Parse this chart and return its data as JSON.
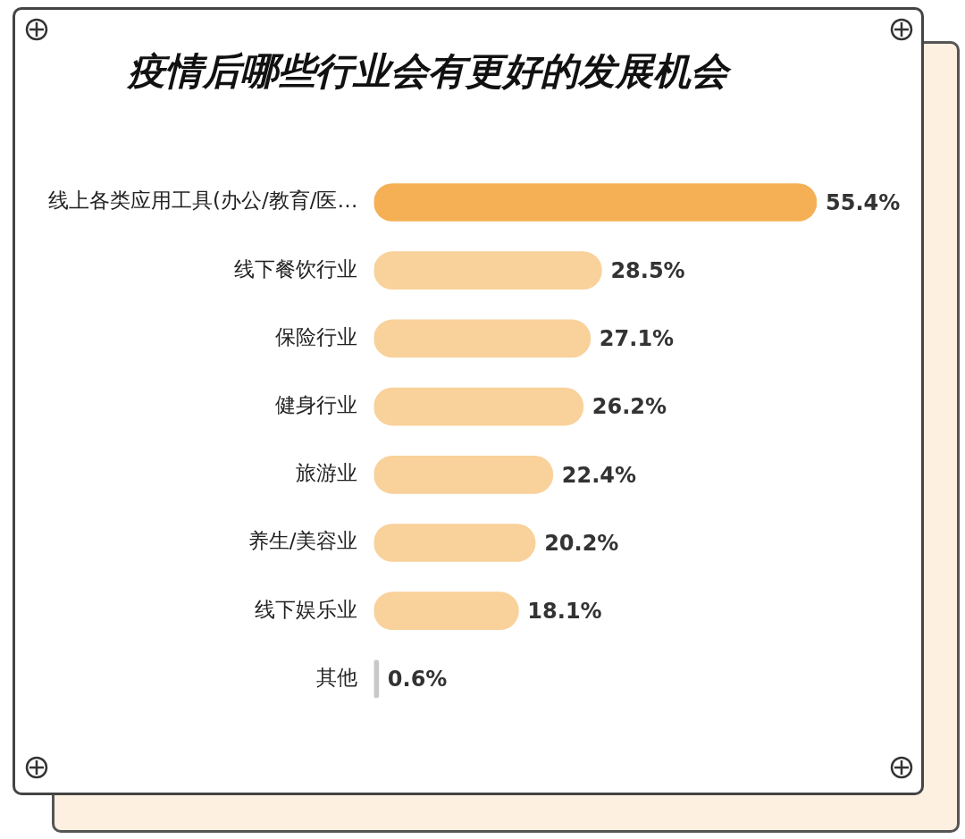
{
  "chart_data": {
    "type": "bar",
    "orientation": "horizontal",
    "title": "疫情后哪些行业会有更好的发展机会",
    "categories": [
      "线上各类应用工具(办公/教育/医…",
      "线下餐饮行业",
      "保险行业",
      "健身行业",
      "旅游业",
      "养生/美容业",
      "线下娱乐业",
      "其他"
    ],
    "values": [
      55.4,
      28.5,
      27.1,
      26.2,
      22.4,
      20.2,
      18.1,
      0.6
    ],
    "colors": [
      "#f5b055",
      "#f9d19a",
      "#f9d19a",
      "#f9d19a",
      "#f9d19a",
      "#f9d19a",
      "#f9d19a",
      "#c8c8c8"
    ],
    "value_labels": [
      "55.4%",
      "28.5%",
      "27.1%",
      "26.2%",
      "22.4%",
      "20.2%",
      "18.1%",
      "0.6%"
    ],
    "legend": false
  }
}
